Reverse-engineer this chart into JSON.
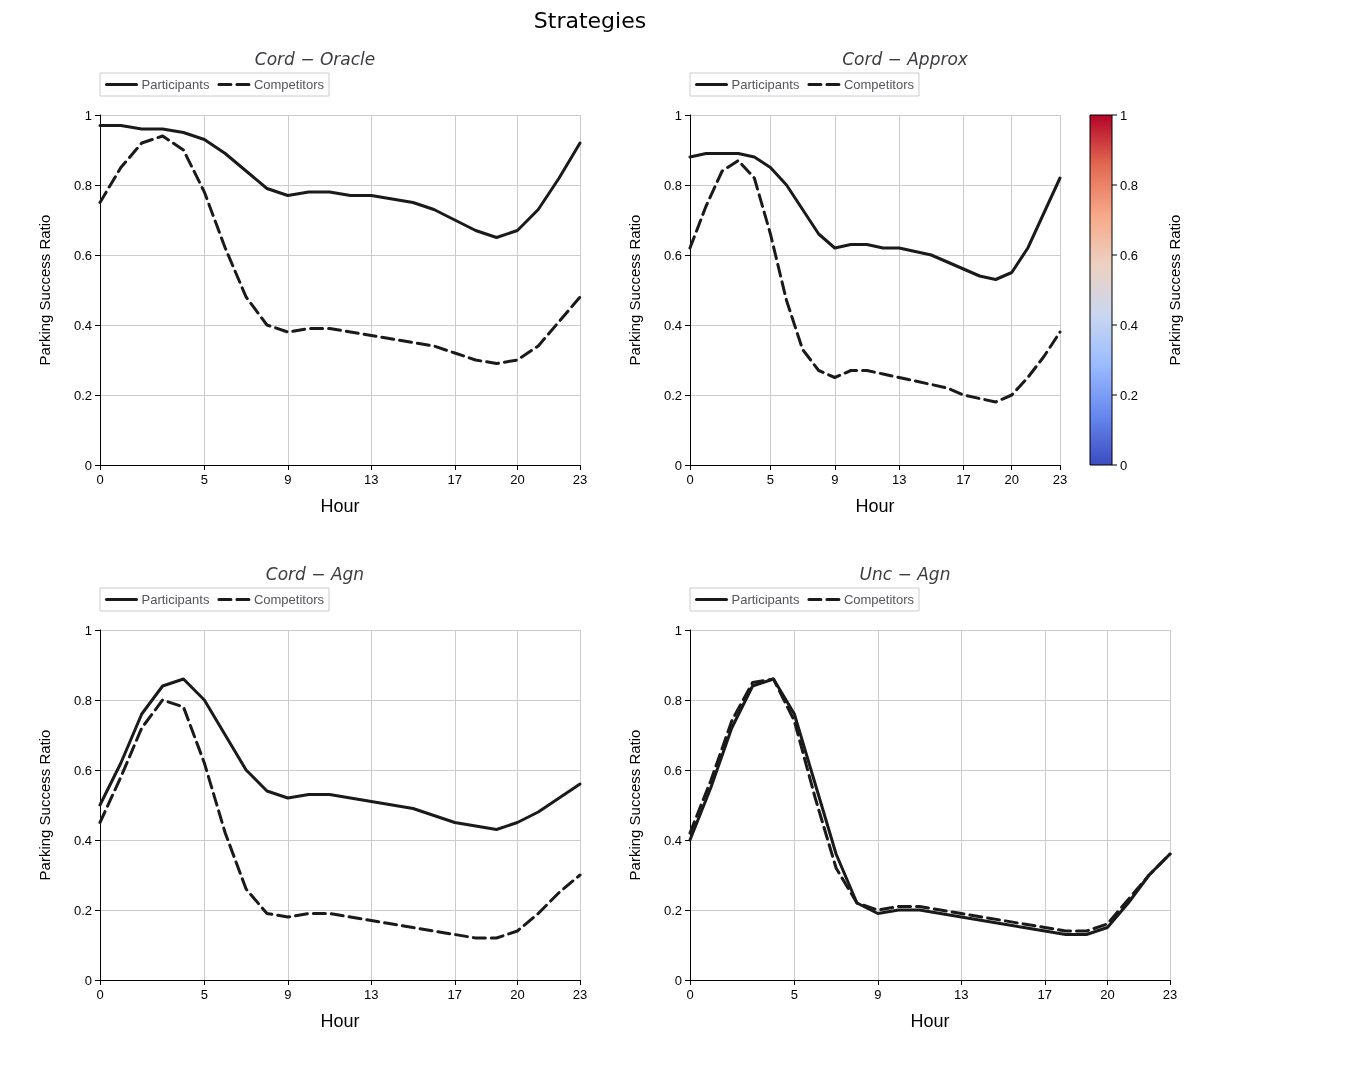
{
  "chart_data": [
    {
      "type": "line",
      "title": "Cord − Oracle",
      "xlabel": "Hour",
      "ylabel": "Parking Success Ratio",
      "annotations": [
        "Strategies"
      ],
      "x": [
        0,
        1,
        2,
        3,
        4,
        5,
        6,
        7,
        8,
        9,
        10,
        11,
        12,
        13,
        14,
        15,
        16,
        17,
        18,
        19,
        20,
        21,
        22,
        23
      ],
      "xlim": [
        0,
        23
      ],
      "xticks": [
        0,
        5,
        9,
        13,
        17,
        20,
        23
      ],
      "ylim": [
        0,
        1
      ],
      "yticks": [
        0,
        0.2,
        0.4,
        0.6,
        0.8,
        1
      ],
      "grid": true,
      "legend": "top left",
      "marker": "none",
      "series": [
        {
          "name": "Participants",
          "color": "#1a1a1a",
          "line_style": "solid",
          "values": [
            0.97,
            0.97,
            0.96,
            0.96,
            0.95,
            0.93,
            0.89,
            0.84,
            0.79,
            0.77,
            0.78,
            0.78,
            0.77,
            0.77,
            0.76,
            0.75,
            0.73,
            0.7,
            0.67,
            0.65,
            0.67,
            0.73,
            0.82,
            0.92
          ]
        },
        {
          "name": "Competitors",
          "color": "#1a1a1a",
          "line_style": "dashed",
          "values": [
            0.75,
            0.85,
            0.92,
            0.94,
            0.9,
            0.78,
            0.62,
            0.48,
            0.4,
            0.38,
            0.39,
            0.39,
            0.38,
            0.37,
            0.36,
            0.35,
            0.34,
            0.32,
            0.3,
            0.29,
            0.3,
            0.34,
            0.41,
            0.48
          ]
        }
      ]
    },
    {
      "type": "line",
      "title": "Cord − Approx",
      "xlabel": "Hour",
      "ylabel": "Parking Success Ratio",
      "clabel": "Parking Success Ratio",
      "x": [
        0,
        1,
        2,
        3,
        4,
        5,
        6,
        7,
        8,
        9,
        10,
        11,
        12,
        13,
        14,
        15,
        16,
        17,
        18,
        19,
        20,
        21,
        22,
        23
      ],
      "xlim": [
        0,
        23
      ],
      "xticks": [
        0,
        5,
        9,
        13,
        17,
        20,
        23
      ],
      "ylim": [
        0,
        1
      ],
      "yticks": [
        0,
        0.2,
        0.4,
        0.6,
        0.8,
        1
      ],
      "clim": [
        0,
        1
      ],
      "cticks": [
        0,
        0.2,
        0.4,
        0.6,
        0.8,
        1
      ],
      "grid": true,
      "legend": "top left",
      "marker": "none",
      "series": [
        {
          "name": "Participants",
          "color": "#1a1a1a",
          "line_style": "solid",
          "values": [
            0.88,
            0.89,
            0.89,
            0.89,
            0.88,
            0.85,
            0.8,
            0.73,
            0.66,
            0.62,
            0.63,
            0.63,
            0.62,
            0.62,
            0.61,
            0.6,
            0.58,
            0.56,
            0.54,
            0.53,
            0.55,
            0.62,
            0.72,
            0.82
          ]
        },
        {
          "name": "Competitors",
          "color": "#1a1a1a",
          "line_style": "dashed",
          "values": [
            0.62,
            0.74,
            0.84,
            0.87,
            0.82,
            0.66,
            0.47,
            0.33,
            0.27,
            0.25,
            0.27,
            0.27,
            0.26,
            0.25,
            0.24,
            0.23,
            0.22,
            0.2,
            0.19,
            0.18,
            0.2,
            0.25,
            0.31,
            0.38
          ]
        }
      ]
    },
    {
      "type": "line",
      "title": "Cord − Agn",
      "xlabel": "Hour",
      "ylabel": "Parking Success Ratio",
      "x": [
        0,
        1,
        2,
        3,
        4,
        5,
        6,
        7,
        8,
        9,
        10,
        11,
        12,
        13,
        14,
        15,
        16,
        17,
        18,
        19,
        20,
        21,
        22,
        23
      ],
      "xlim": [
        0,
        23
      ],
      "xticks": [
        0,
        5,
        9,
        13,
        17,
        20,
        23
      ],
      "ylim": [
        0,
        1
      ],
      "yticks": [
        0,
        0.2,
        0.4,
        0.6,
        0.8,
        1
      ],
      "grid": true,
      "legend": "top left",
      "marker": "none",
      "series": [
        {
          "name": "Participants",
          "color": "#1a1a1a",
          "line_style": "solid",
          "values": [
            0.5,
            0.62,
            0.76,
            0.84,
            0.86,
            0.8,
            0.7,
            0.6,
            0.54,
            0.52,
            0.53,
            0.53,
            0.52,
            0.51,
            0.5,
            0.49,
            0.47,
            0.45,
            0.44,
            0.43,
            0.45,
            0.48,
            0.52,
            0.56
          ]
        },
        {
          "name": "Competitors",
          "color": "#1a1a1a",
          "line_style": "dashed",
          "values": [
            0.45,
            0.58,
            0.72,
            0.8,
            0.78,
            0.62,
            0.42,
            0.26,
            0.19,
            0.18,
            0.19,
            0.19,
            0.18,
            0.17,
            0.16,
            0.15,
            0.14,
            0.13,
            0.12,
            0.12,
            0.14,
            0.19,
            0.25,
            0.3
          ]
        }
      ]
    },
    {
      "type": "line",
      "title": "Unc − Agn",
      "xlabel": "Hour",
      "ylabel": "Parking Success Ratio",
      "x": [
        0,
        1,
        2,
        3,
        4,
        5,
        6,
        7,
        8,
        9,
        10,
        11,
        12,
        13,
        14,
        15,
        16,
        17,
        18,
        19,
        20,
        21,
        22,
        23
      ],
      "xlim": [
        0,
        23
      ],
      "xticks": [
        0,
        5,
        9,
        13,
        17,
        20,
        23
      ],
      "ylim": [
        0,
        1
      ],
      "yticks": [
        0,
        0.2,
        0.4,
        0.6,
        0.8,
        1
      ],
      "grid": true,
      "legend": "top left",
      "marker": "none",
      "series": [
        {
          "name": "Participants",
          "color": "#1a1a1a",
          "line_style": "solid",
          "values": [
            0.4,
            0.55,
            0.72,
            0.84,
            0.86,
            0.76,
            0.56,
            0.36,
            0.22,
            0.19,
            0.2,
            0.2,
            0.19,
            0.18,
            0.17,
            0.16,
            0.15,
            0.14,
            0.13,
            0.13,
            0.15,
            0.22,
            0.3,
            0.36
          ]
        },
        {
          "name": "Competitors",
          "color": "#1a1a1a",
          "line_style": "dashed",
          "values": [
            0.42,
            0.57,
            0.74,
            0.85,
            0.86,
            0.74,
            0.52,
            0.32,
            0.22,
            0.2,
            0.21,
            0.21,
            0.2,
            0.19,
            0.18,
            0.17,
            0.16,
            0.15,
            0.14,
            0.14,
            0.16,
            0.23,
            0.3,
            0.36
          ]
        }
      ]
    }
  ]
}
